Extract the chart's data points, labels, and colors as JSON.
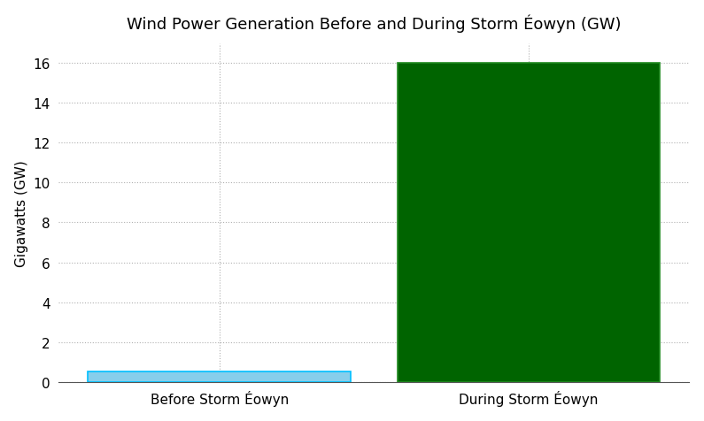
{
  "categories": [
    "Before Storm Éowyn",
    "During Storm Éowyn"
  ],
  "values": [
    0.5,
    16.0
  ],
  "bar_colors": [
    "#87CEEB",
    "#006400"
  ],
  "bar_edgecolors": [
    "#00BFFF",
    "#228B22"
  ],
  "title": "Wind Power Generation Before and During Storm Éowyn (GW)",
  "ylabel": "Gigawatts (GW)",
  "ylim": [
    0,
    17
  ],
  "yticks": [
    0,
    2,
    4,
    6,
    8,
    10,
    12,
    14,
    16
  ],
  "grid_color": "#b0b0b0",
  "grid_linestyle": ":",
  "background_color": "#ffffff",
  "title_fontsize": 13,
  "ylabel_fontsize": 11,
  "tick_fontsize": 11,
  "bar_width": 0.85,
  "xlim": [
    -0.52,
    1.52
  ]
}
